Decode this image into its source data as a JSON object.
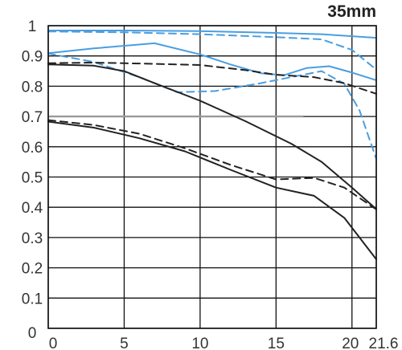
{
  "chart_data": {
    "type": "line",
    "title": "35mm",
    "xlabel": "",
    "ylabel": "",
    "xlim": [
      0,
      21.6
    ],
    "ylim": [
      0,
      1
    ],
    "x_ticks": [
      "0",
      "5",
      "10",
      "15",
      "20",
      "21.6"
    ],
    "y_ticks": [
      "0",
      "0.1",
      "0.2",
      "0.3",
      "0.4",
      "0.5",
      "0.6",
      "0.7",
      "0.8",
      "0.9",
      "1"
    ],
    "grid": true,
    "reference_line": {
      "y": 0.7,
      "x_end": 16.8,
      "color": "#999999"
    },
    "series": [
      {
        "color": "#4a9ee0",
        "dash": false,
        "points": [
          [
            0,
            0.984
          ],
          [
            5,
            0.984
          ],
          [
            10,
            0.982
          ],
          [
            15,
            0.976
          ],
          [
            18,
            0.972
          ],
          [
            21.6,
            0.96
          ]
        ]
      },
      {
        "color": "#4a9ee0",
        "dash": true,
        "points": [
          [
            0,
            0.981
          ],
          [
            5,
            0.978
          ],
          [
            10,
            0.972
          ],
          [
            15,
            0.962
          ],
          [
            18,
            0.955
          ],
          [
            20,
            0.92
          ],
          [
            21.6,
            0.855
          ]
        ]
      },
      {
        "color": "#4a9ee0",
        "dash": false,
        "points": [
          [
            0,
            0.909
          ],
          [
            3,
            0.925
          ],
          [
            7,
            0.942
          ],
          [
            10,
            0.905
          ],
          [
            12,
            0.872
          ],
          [
            14,
            0.843
          ],
          [
            15.5,
            0.836
          ],
          [
            17,
            0.86
          ],
          [
            18.5,
            0.866
          ],
          [
            20,
            0.845
          ],
          [
            21.6,
            0.82
          ]
        ]
      },
      {
        "color": "#4a9ee0",
        "dash": true,
        "points": [
          [
            0,
            0.908
          ],
          [
            3,
            0.88
          ],
          [
            6,
            0.83
          ],
          [
            8.5,
            0.78
          ],
          [
            11,
            0.784
          ],
          [
            14,
            0.81
          ],
          [
            16,
            0.83
          ],
          [
            18,
            0.85
          ],
          [
            19.5,
            0.808
          ],
          [
            20.5,
            0.72
          ],
          [
            21.6,
            0.56
          ]
        ]
      },
      {
        "color": "#222222",
        "dash": true,
        "points": [
          [
            0,
            0.876
          ],
          [
            3,
            0.878
          ],
          [
            6,
            0.875
          ],
          [
            10,
            0.87
          ],
          [
            13,
            0.853
          ],
          [
            15,
            0.838
          ],
          [
            17.5,
            0.83
          ],
          [
            19.5,
            0.81
          ],
          [
            21.6,
            0.775
          ]
        ]
      },
      {
        "color": "#222222",
        "dash": false,
        "points": [
          [
            0,
            0.872
          ],
          [
            3,
            0.868
          ],
          [
            5,
            0.85
          ],
          [
            7,
            0.81
          ],
          [
            10,
            0.752
          ],
          [
            13,
            0.684
          ],
          [
            16,
            0.61
          ],
          [
            18,
            0.55
          ],
          [
            20,
            0.465
          ],
          [
            21.6,
            0.394
          ]
        ]
      },
      {
        "color": "#222222",
        "dash": true,
        "points": [
          [
            0,
            0.688
          ],
          [
            3,
            0.672
          ],
          [
            6,
            0.643
          ],
          [
            9,
            0.595
          ],
          [
            12,
            0.54
          ],
          [
            15,
            0.492
          ],
          [
            17.5,
            0.497
          ],
          [
            19.5,
            0.465
          ],
          [
            21.6,
            0.393
          ]
        ]
      },
      {
        "color": "#222222",
        "dash": false,
        "points": [
          [
            0,
            0.683
          ],
          [
            3,
            0.663
          ],
          [
            6,
            0.628
          ],
          [
            9,
            0.585
          ],
          [
            12,
            0.524
          ],
          [
            15,
            0.465
          ],
          [
            17.5,
            0.438
          ],
          [
            19.5,
            0.365
          ],
          [
            21.6,
            0.228
          ]
        ]
      }
    ]
  }
}
